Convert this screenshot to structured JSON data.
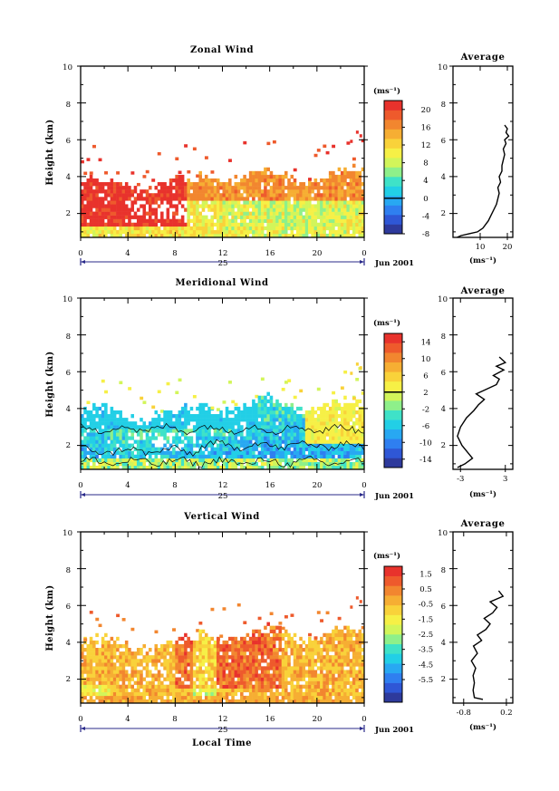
{
  "colors": {
    "scale": [
      "#2e3a9c",
      "#2f57d6",
      "#2f7ff0",
      "#28a8f2",
      "#22cfe6",
      "#3fe2c8",
      "#8ef08a",
      "#d2f55a",
      "#f6f046",
      "#f9d23a",
      "#f6ae33",
      "#f2862f",
      "#ee5a2c",
      "#e8322c"
    ],
    "box": "#000000",
    "axis_blue": "#2a2a8a"
  },
  "chart_data": [
    {
      "type": "heatmap",
      "title": "Zonal Wind",
      "xlabel": "",
      "ylabel": "Height (km)",
      "xlim": [
        0,
        24
      ],
      "ylim": [
        0.7,
        10
      ],
      "x_ticks": [
        "0",
        "4",
        "8",
        "12",
        "16",
        "20",
        "0"
      ],
      "y_ticks": [
        "2",
        "4",
        "6",
        "8",
        "10"
      ],
      "date_marker": "25",
      "date_label": "Jun 2001",
      "colorbar": {
        "unit": "(ms⁻¹)",
        "min": -8,
        "max": 22,
        "labels": [
          "20",
          "16",
          "12",
          "8",
          "4",
          "0",
          "-4",
          "-8"
        ],
        "label_values": [
          20,
          16,
          12,
          8,
          4,
          0,
          -4,
          -8
        ],
        "zero_line": 0
      },
      "field": {
        "low_band": 10,
        "mid": 9,
        "upper": 16,
        "noise": 3,
        "cloud_top": 3.2,
        "extra": "upper_left_red"
      },
      "profile": {
        "title": "Average",
        "xlabel": "(ms⁻¹)",
        "x_ticks": [
          "10",
          "20"
        ],
        "x_tick_values": [
          10,
          20
        ],
        "xlim": [
          0,
          22
        ],
        "y_ticks": [
          "2",
          "4",
          "6",
          "8",
          "10"
        ],
        "points": [
          [
            1.5,
            0.7
          ],
          [
            3,
            0.8
          ],
          [
            6,
            0.9
          ],
          [
            9,
            1.0
          ],
          [
            11,
            1.2
          ],
          [
            13,
            1.6
          ],
          [
            14,
            1.9
          ],
          [
            15,
            2.2
          ],
          [
            16,
            2.5
          ],
          [
            16.5,
            2.8
          ],
          [
            17,
            3.1
          ],
          [
            16.5,
            3.4
          ],
          [
            17.5,
            3.7
          ],
          [
            17,
            4.0
          ],
          [
            18,
            4.3
          ],
          [
            18,
            4.6
          ],
          [
            18.5,
            4.9
          ],
          [
            19,
            5.2
          ],
          [
            18.5,
            5.5
          ],
          [
            19.5,
            5.8
          ],
          [
            19,
            6.0
          ],
          [
            20.5,
            6.2
          ],
          [
            19.5,
            6.4
          ],
          [
            20,
            6.6
          ],
          [
            19,
            6.8
          ]
        ]
      }
    },
    {
      "type": "heatmap",
      "title": "Meridional Wind",
      "xlabel": "",
      "ylabel": "Height (km)",
      "xlim": [
        0,
        24
      ],
      "ylim": [
        0.7,
        10
      ],
      "x_ticks": [
        "0",
        "4",
        "8",
        "12",
        "16",
        "20",
        "0"
      ],
      "y_ticks": [
        "2",
        "4",
        "6",
        "8",
        "10"
      ],
      "date_marker": "25",
      "date_label": "Jun 2001",
      "colorbar": {
        "unit": "(ms⁻¹)",
        "min": -16,
        "max": 16,
        "labels": [
          "14",
          "10",
          "6",
          "2",
          "-2",
          "-6",
          "-10",
          "-14"
        ],
        "label_values": [
          14,
          10,
          6,
          2,
          -2,
          -6,
          -10,
          -14
        ],
        "zero_line": 2
      },
      "field": {
        "low_band": -8,
        "mid": -3,
        "upper": 2,
        "noise": 3,
        "cloud_top": 3.3,
        "extra": "contour"
      },
      "profile": {
        "title": "Average",
        "xlabel": "(ms⁻¹)",
        "x_ticks": [
          "-3",
          "3"
        ],
        "x_tick_values": [
          -3,
          3
        ],
        "xlim": [
          -4,
          4
        ],
        "y_ticks": [
          "2",
          "4",
          "6",
          "8",
          "10"
        ],
        "points": [
          [
            -3.4,
            0.8
          ],
          [
            -2.4,
            1.0
          ],
          [
            -1.4,
            1.3
          ],
          [
            -2.0,
            1.6
          ],
          [
            -2.8,
            2.0
          ],
          [
            -3.4,
            2.5
          ],
          [
            -3.0,
            3.0
          ],
          [
            -2.2,
            3.5
          ],
          [
            -1.2,
            3.9
          ],
          [
            -0.6,
            4.2
          ],
          [
            0.2,
            4.5
          ],
          [
            -0.9,
            4.8
          ],
          [
            0.2,
            5.0
          ],
          [
            1.8,
            5.3
          ],
          [
            2.2,
            5.6
          ],
          [
            1.4,
            5.8
          ],
          [
            2.8,
            6.1
          ],
          [
            1.8,
            6.3
          ],
          [
            3.0,
            6.5
          ],
          [
            2.2,
            6.8
          ]
        ]
      }
    },
    {
      "type": "heatmap",
      "title": "Vertical Wind",
      "xlabel": "Local Time",
      "ylabel": "Height (km)",
      "xlim": [
        0,
        24
      ],
      "ylim": [
        0.7,
        10
      ],
      "x_ticks": [
        "0",
        "4",
        "8",
        "12",
        "16",
        "20",
        "0"
      ],
      "y_ticks": [
        "2",
        "4",
        "6",
        "8",
        "10"
      ],
      "date_marker": "25",
      "date_label": "Jun 2001",
      "colorbar": {
        "unit": "(ms⁻¹)",
        "min": -7,
        "max": 2,
        "labels": [
          "1.5",
          "0.5",
          "-0.5",
          "-1.5",
          "-2.5",
          "-3.5",
          "-4.5",
          "-5.5"
        ],
        "label_values": [
          1.5,
          0.5,
          -0.5,
          -1.5,
          -2.5,
          -3.5,
          -4.5,
          -5.5
        ]
      },
      "field": {
        "low_band": 0,
        "mid": 0,
        "upper": 0,
        "noise": 0.8,
        "cloud_top": 3.5,
        "extra": "vertical"
      },
      "profile": {
        "title": "Average",
        "xlabel": "(ms⁻¹)",
        "x_ticks": [
          "-0.8",
          "0.2"
        ],
        "x_tick_values": [
          -0.8,
          0.2
        ],
        "xlim": [
          -1.05,
          0.35
        ],
        "y_ticks": [
          "2",
          "4",
          "6",
          "8",
          "10"
        ],
        "points": [
          [
            -0.35,
            0.9
          ],
          [
            -0.55,
            1.0
          ],
          [
            -0.58,
            1.4
          ],
          [
            -0.55,
            1.8
          ],
          [
            -0.58,
            2.2
          ],
          [
            -0.52,
            2.6
          ],
          [
            -0.62,
            3.0
          ],
          [
            -0.48,
            3.4
          ],
          [
            -0.57,
            3.8
          ],
          [
            -0.38,
            4.1
          ],
          [
            -0.48,
            4.4
          ],
          [
            -0.28,
            4.7
          ],
          [
            -0.18,
            5.0
          ],
          [
            -0.32,
            5.3
          ],
          [
            -0.12,
            5.6
          ],
          [
            -0.02,
            5.9
          ],
          [
            -0.18,
            6.2
          ],
          [
            0.12,
            6.5
          ],
          [
            0.02,
            6.8
          ]
        ]
      }
    }
  ]
}
